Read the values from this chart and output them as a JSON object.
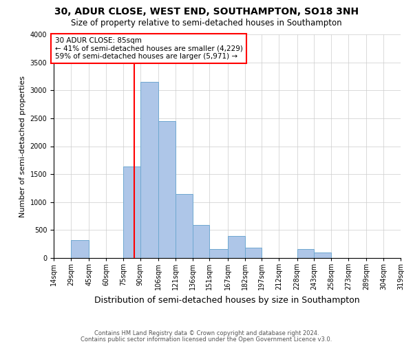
{
  "title": "30, ADUR CLOSE, WEST END, SOUTHAMPTON, SO18 3NH",
  "subtitle": "Size of property relative to semi-detached houses in Southampton",
  "xlabel": "Distribution of semi-detached houses by size in Southampton",
  "ylabel": "Number of semi-detached properties",
  "footnote1": "Contains HM Land Registry data © Crown copyright and database right 2024.",
  "footnote2": "Contains public sector information licensed under the Open Government Licence v3.0.",
  "annotation_line1": "30 ADUR CLOSE: 85sqm",
  "annotation_line2": "← 41% of semi-detached houses are smaller (4,229)",
  "annotation_line3": "59% of semi-detached houses are larger (5,971) →",
  "property_size": 85,
  "bar_left_edges": [
    14,
    29,
    45,
    60,
    75,
    90,
    106,
    121,
    136,
    151,
    167,
    182,
    197,
    212,
    228,
    243,
    258,
    273,
    289,
    304
  ],
  "bar_widths": [
    15,
    16,
    15,
    15,
    15,
    16,
    15,
    15,
    15,
    16,
    15,
    15,
    15,
    16,
    15,
    15,
    15,
    16,
    15,
    15
  ],
  "bar_heights": [
    0,
    320,
    0,
    0,
    1640,
    3150,
    2450,
    1150,
    590,
    155,
    390,
    185,
    0,
    0,
    155,
    100,
    0,
    0,
    0,
    0
  ],
  "bin_labels": [
    "14sqm",
    "29sqm",
    "45sqm",
    "60sqm",
    "75sqm",
    "90sqm",
    "106sqm",
    "121sqm",
    "136sqm",
    "151sqm",
    "167sqm",
    "182sqm",
    "197sqm",
    "212sqm",
    "228sqm",
    "243sqm",
    "258sqm",
    "273sqm",
    "289sqm",
    "304sqm",
    "319sqm"
  ],
  "bar_color": "#AEC6E8",
  "bar_edge_color": "#6FA8D0",
  "vline_color": "red",
  "vline_x": 85,
  "annotation_box_color": "white",
  "annotation_box_edge_color": "red",
  "ylim": [
    0,
    4000
  ],
  "yticks": [
    0,
    500,
    1000,
    1500,
    2000,
    2500,
    3000,
    3500,
    4000
  ],
  "grid_color": "#cccccc",
  "title_fontsize": 10,
  "subtitle_fontsize": 8.5,
  "xlabel_fontsize": 9,
  "ylabel_fontsize": 8,
  "tick_fontsize": 7,
  "footnote_fontsize": 6,
  "annotation_fontsize": 7.5
}
